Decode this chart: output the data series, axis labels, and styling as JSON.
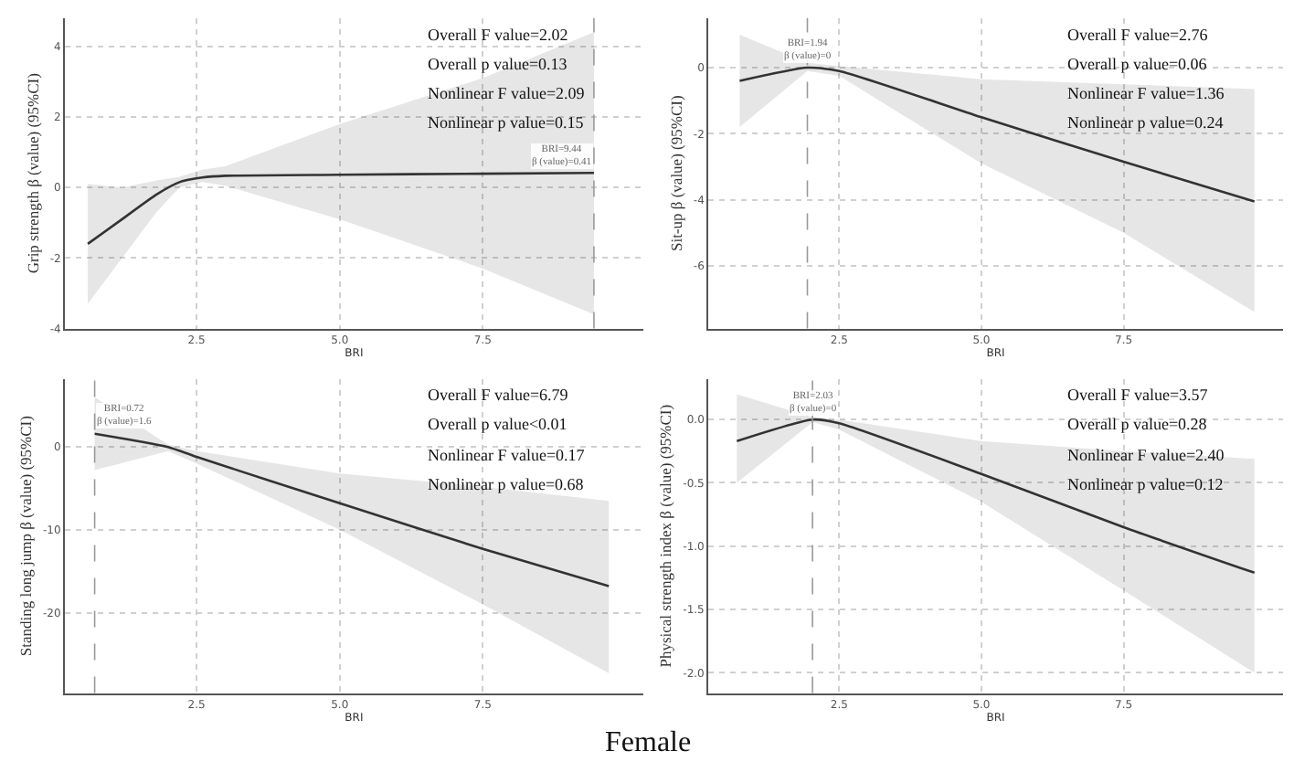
{
  "chart_data": [
    {
      "type": "line",
      "xlabel": "BRI",
      "ylabel": "Grip strength β (value) (95%CI)",
      "xlim": [
        0.2,
        10.3
      ],
      "xticks": [
        {
          "value": 2.5,
          "label": "2.5"
        },
        {
          "value": 5.0,
          "label": "5.0"
        },
        {
          "value": 7.5,
          "label": "7.5"
        }
      ],
      "ylim": [
        -4,
        4.8
      ],
      "yticks": [
        -4,
        -2,
        0,
        2,
        4
      ],
      "grid": true,
      "x": [
        0.6,
        1.2,
        1.8,
        2.2,
        2.6,
        3.0,
        5.0,
        7.5,
        9.44
      ],
      "series": [
        {
          "color": "#333333",
          "values": [
            -1.6,
            -0.9,
            -0.2,
            0.15,
            0.28,
            0.33,
            0.36,
            0.39,
            0.41
          ],
          "lower": [
            -3.3,
            -2.0,
            -0.7,
            0.0,
            0.15,
            0.05,
            -0.9,
            -2.3,
            -3.6
          ],
          "upper": [
            0.1,
            0.0,
            0.2,
            0.3,
            0.5,
            0.6,
            1.8,
            3.1,
            4.4
          ]
        }
      ],
      "ref_lines": [
        {
          "axis": "x",
          "value": 9.44,
          "label": "BRI=9.44\nβ (value)=0.41",
          "line_style": "dashed"
        }
      ],
      "annotations": [
        "Overall F value=2.02",
        "Overall p value=0.13",
        "Nonlinear F value=2.09",
        "Nonlinear p value=0.15"
      ]
    },
    {
      "type": "line",
      "xlabel": "BRI",
      "ylabel": "Sit-up β (value) (95%CI)",
      "xlim": [
        0.2,
        10.3
      ],
      "xticks": [
        {
          "value": 2.5,
          "label": "2.5"
        },
        {
          "value": 5.0,
          "label": "5.0"
        },
        {
          "value": 7.5,
          "label": "7.5"
        }
      ],
      "ylim": [
        -7.9,
        1.5
      ],
      "yticks": [
        -6,
        -4,
        -2,
        0
      ],
      "grid": true,
      "x": [
        0.75,
        1.94,
        2.5,
        5.0,
        7.5,
        9.8
      ],
      "series": [
        {
          "color": "#333333",
          "values": [
            -0.4,
            0,
            -0.1,
            -1.5,
            -2.85,
            -4.05
          ],
          "lower": [
            -1.8,
            -0.1,
            -0.25,
            -2.9,
            -5.0,
            -7.4
          ],
          "upper": [
            1.0,
            0.15,
            0.05,
            -0.35,
            -0.5,
            -0.65
          ]
        }
      ],
      "ref_lines": [
        {
          "axis": "x",
          "value": 1.94,
          "label": "BRI=1.94\nβ (value)=0",
          "line_style": "dashed"
        }
      ],
      "annotations": [
        "Overall F value=2.76",
        "Overall p value=0.06",
        "Nonlinear F value=1.36",
        "Nonlinear p value=0.24"
      ]
    },
    {
      "type": "line",
      "xlabel": "BRI",
      "ylabel": "Standing long jump β (value) (95%CI)",
      "xlim": [
        0.2,
        10.3
      ],
      "xticks": [
        {
          "value": 2.5,
          "label": "2.5"
        },
        {
          "value": 5.0,
          "label": "5.0"
        },
        {
          "value": 7.5,
          "label": "7.5"
        }
      ],
      "ylim": [
        -29.7,
        8.2
      ],
      "yticks": [
        -20,
        -10,
        0
      ],
      "grid": true,
      "x": [
        0.72,
        2.0,
        2.5,
        5.0,
        7.5,
        9.7
      ],
      "series": [
        {
          "color": "#333333",
          "values": [
            1.6,
            0,
            -1.2,
            -6.8,
            -12.3,
            -16.8
          ],
          "lower": [
            -2.8,
            -0.5,
            -2.0,
            -10.0,
            -19.0,
            -27.3
          ],
          "upper": [
            6.0,
            0.3,
            -0.5,
            -3.2,
            -4.8,
            -6.5
          ]
        }
      ],
      "ref_lines": [
        {
          "axis": "x",
          "value": 0.72,
          "label": "BRI=0.72\nβ (value)=1.6",
          "line_style": "dashed"
        }
      ],
      "annotations": [
        "Overall F value=6.79",
        "Overall p value<0.01",
        "Nonlinear F value=0.17",
        "Nonlinear p value=0.68"
      ]
    },
    {
      "type": "line",
      "xlabel": "BRI",
      "ylabel": "Physical strength index β (value) (95%CI)",
      "xlim": [
        0.2,
        10.3
      ],
      "xticks": [
        {
          "value": 2.5,
          "label": "2.5"
        },
        {
          "value": 5.0,
          "label": "5.0"
        },
        {
          "value": 7.5,
          "label": "7.5"
        }
      ],
      "ylim": [
        -2.16,
        0.32
      ],
      "yticks": [
        {
          "value": -2.0,
          "label": "-2.0"
        },
        {
          "value": -1.5,
          "label": "-1.5"
        },
        {
          "value": -1.0,
          "label": "-1.0"
        },
        {
          "value": -0.5,
          "label": "-0.5"
        },
        {
          "value": 0.0,
          "label": "0.0"
        }
      ],
      "grid": true,
      "x": [
        0.7,
        2.03,
        2.5,
        5.0,
        7.5,
        9.8
      ],
      "series": [
        {
          "color": "#333333",
          "values": [
            -0.17,
            0,
            -0.03,
            -0.43,
            -0.85,
            -1.21
          ],
          "lower": [
            -0.5,
            -0.02,
            -0.08,
            -0.65,
            -1.35,
            -2.0
          ],
          "upper": [
            0.2,
            0.02,
            0.0,
            -0.17,
            -0.25,
            -0.31
          ]
        }
      ],
      "ref_lines": [
        {
          "axis": "x",
          "value": 2.03,
          "label": "BRI=2.03\nβ (value)=0",
          "line_style": "dashed"
        }
      ],
      "annotations": [
        "Overall F value=3.57",
        "Overall p value=0.28",
        "Nonlinear F value=2.40",
        "Nonlinear p value=0.12"
      ]
    },
    {
      "type": "other",
      "title": "Female"
    }
  ]
}
